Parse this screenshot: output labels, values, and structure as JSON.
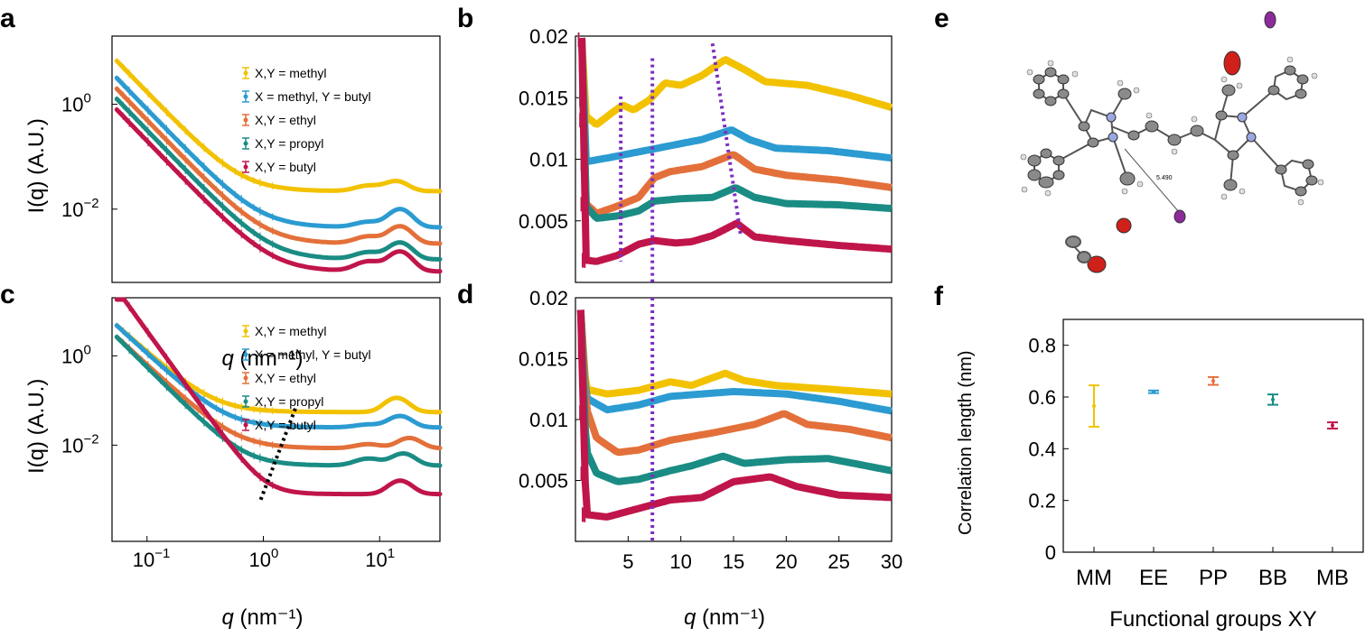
{
  "panel_labels": [
    "a",
    "b",
    "c",
    "d",
    "e",
    "f"
  ],
  "colors": {
    "methyl": "#f2c200",
    "methyl_butyl": "#2b9bd1",
    "ethyl": "#e3703a",
    "propyl": "#1a8c84",
    "butyl": "#c0154a",
    "guide_purple": "#7b2fbe",
    "guide_black": "#000000"
  },
  "legend": {
    "entries": [
      {
        "key": "methyl",
        "label": "X,Y = methyl"
      },
      {
        "key": "methyl_butyl",
        "label": "X = methyl, Y = butyl"
      },
      {
        "key": "ethyl",
        "label": "X,Y = ethyl"
      },
      {
        "key": "propyl",
        "label": "X,Y = propyl"
      },
      {
        "key": "butyl",
        "label": "X,Y = butyl"
      }
    ]
  },
  "molecule": {
    "distance_label": "5.490"
  },
  "chart_data": [
    {
      "id": "a",
      "type": "scatter",
      "xscale": "log",
      "yscale": "log",
      "xlim": [
        0.05,
        33
      ],
      "ylim": [
        0.0004,
        20
      ],
      "xlabel_var": "q",
      "xlabel_unit": " (nm⁻¹)",
      "ylabel": "I(q) (A.U.)",
      "yticks": [
        {
          "v": 1,
          "base": "10",
          "exp": "0"
        },
        {
          "v": 0.01,
          "base": "10",
          "exp": "−2"
        }
      ],
      "series": [
        {
          "key": "methyl",
          "name": "X,Y = methyl",
          "plateau": 0.022,
          "A": 0.0085,
          "p": 2.3,
          "peaks": [
            [
              8,
              0.35,
              0.006
            ],
            [
              14,
              0.3,
              0.012
            ]
          ]
        },
        {
          "key": "methyl_butyl",
          "name": "X = methyl, Y = butyl",
          "plateau": 0.0045,
          "A": 0.004,
          "p": 2.3,
          "peaks": [
            [
              8,
              0.35,
              0.0012
            ],
            [
              15,
              0.3,
              0.0055
            ]
          ]
        },
        {
          "key": "ethyl",
          "name": "X,Y = ethyl",
          "plateau": 0.0022,
          "A": 0.0025,
          "p": 2.3,
          "peaks": [
            [
              8,
              0.35,
              0.0008
            ],
            [
              15,
              0.3,
              0.0025
            ]
          ]
        },
        {
          "key": "propyl",
          "name": "X,Y = propyl",
          "plateau": 0.0011,
          "A": 0.0016,
          "p": 2.3,
          "peaks": [
            [
              8,
              0.35,
              0.0004
            ],
            [
              15,
              0.3,
              0.0012
            ]
          ]
        },
        {
          "key": "butyl",
          "name": "X,Y = butyl",
          "plateau": 0.00065,
          "A": 0.001,
          "p": 2.3,
          "peaks": [
            [
              8,
              0.35,
              0.00035
            ],
            [
              15,
              0.3,
              0.0009
            ]
          ]
        }
      ]
    },
    {
      "id": "b",
      "type": "scatter",
      "xscale": "linear",
      "yscale": "linear",
      "xlim": [
        0,
        30
      ],
      "ylim": [
        0,
        0.02
      ],
      "yticks": [
        0.005,
        0.01,
        0.015,
        0.02
      ],
      "guides": [
        {
          "x1": 4.3,
          "y1": 0.0151,
          "x2": 4.3,
          "y2": 0.0017
        },
        {
          "x1": 7.3,
          "y1": 0.0182,
          "x2": 7.3,
          "y2": 0.0
        },
        {
          "x1": 13.0,
          "y1": 0.0194,
          "x2": 15.7,
          "y2": 0.0037
        }
      ],
      "series": [
        {
          "key": "methyl",
          "name": "X,Y = methyl",
          "start": 0.014,
          "end": 0.0142,
          "pts": [
            [
              0.6,
              0.02
            ],
            [
              1,
              0.0135
            ],
            [
              2,
              0.0128
            ],
            [
              3.5,
              0.0138
            ],
            [
              4.5,
              0.0144
            ],
            [
              5.5,
              0.014
            ],
            [
              7,
              0.0148
            ],
            [
              8.5,
              0.0162
            ],
            [
              10,
              0.016
            ],
            [
              12,
              0.0168
            ],
            [
              14.2,
              0.0181
            ],
            [
              16,
              0.0173
            ],
            [
              18,
              0.0163
            ],
            [
              22,
              0.016
            ],
            [
              26,
              0.0152
            ],
            [
              30,
              0.0142
            ]
          ]
        },
        {
          "key": "methyl_butyl",
          "name": "X = methyl, Y = butyl",
          "pts": [
            [
              0.6,
              0.02
            ],
            [
              1,
              0.0098
            ],
            [
              3,
              0.0101
            ],
            [
              6,
              0.0106
            ],
            [
              9,
              0.0111
            ],
            [
              12,
              0.0116
            ],
            [
              14.8,
              0.0124
            ],
            [
              16.5,
              0.0116
            ],
            [
              19,
              0.0109
            ],
            [
              24,
              0.0107
            ],
            [
              30,
              0.0101
            ]
          ]
        },
        {
          "key": "ethyl",
          "name": "X,Y = ethyl",
          "pts": [
            [
              0.6,
              0.02
            ],
            [
              1,
              0.0064
            ],
            [
              2,
              0.0056
            ],
            [
              4,
              0.0062
            ],
            [
              6,
              0.0069
            ],
            [
              7.5,
              0.0085
            ],
            [
              9,
              0.009
            ],
            [
              12,
              0.0094
            ],
            [
              15,
              0.0104
            ],
            [
              17,
              0.0092
            ],
            [
              20,
              0.0087
            ],
            [
              25,
              0.0083
            ],
            [
              30,
              0.0077
            ]
          ]
        },
        {
          "key": "propyl",
          "name": "X,Y = propyl",
          "pts": [
            [
              0.6,
              0.02
            ],
            [
              1,
              0.0062
            ],
            [
              2,
              0.0052
            ],
            [
              4,
              0.0054
            ],
            [
              6,
              0.0058
            ],
            [
              7.5,
              0.0066
            ],
            [
              10,
              0.0068
            ],
            [
              13,
              0.0069
            ],
            [
              15.2,
              0.0077
            ],
            [
              17,
              0.0069
            ],
            [
              20,
              0.0064
            ],
            [
              25,
              0.0063
            ],
            [
              30,
              0.006
            ]
          ]
        },
        {
          "key": "butyl",
          "name": "X,Y = butyl",
          "pts": [
            [
              0.6,
              0.02
            ],
            [
              1,
              0.0018
            ],
            [
              2,
              0.0017
            ],
            [
              4,
              0.0022
            ],
            [
              6,
              0.0031
            ],
            [
              7.5,
              0.0034
            ],
            [
              9.5,
              0.0032
            ],
            [
              11,
              0.0033
            ],
            [
              13,
              0.0038
            ],
            [
              15.3,
              0.0048
            ],
            [
              17,
              0.0037
            ],
            [
              20,
              0.0034
            ],
            [
              25,
              0.003
            ],
            [
              30,
              0.0027
            ]
          ]
        }
      ]
    },
    {
      "id": "c",
      "type": "scatter",
      "xscale": "log",
      "yscale": "log",
      "xlim": [
        0.05,
        33
      ],
      "ylim": [
        7e-05,
        20
      ],
      "xlabel_var": "q",
      "xlabel_unit": " (nm⁻¹)",
      "ylabel": "I(q) (A.U.)",
      "xticks": [
        {
          "v": 0.1,
          "base": "10",
          "exp": "−1"
        },
        {
          "v": 1,
          "base": "10",
          "exp": "0"
        },
        {
          "v": 10,
          "base": "10",
          "exp": "1"
        }
      ],
      "yticks": [
        {
          "v": 1,
          "base": "10",
          "exp": "0"
        },
        {
          "v": 0.01,
          "base": "10",
          "exp": "−2"
        }
      ],
      "guide": {
        "x1": 0.95,
        "y1": 0.0006,
        "x2": 1.9,
        "y2": 0.07
      },
      "series": [
        {
          "key": "methyl",
          "name": "X,Y = methyl",
          "plateau": 0.055,
          "A": 0.006,
          "p": 2.3,
          "peaks": [
            [
              14,
              0.3,
              0.06
            ]
          ]
        },
        {
          "key": "methyl_butyl",
          "name": "X = methyl, Y = butyl",
          "plateau": 0.025,
          "A": 0.0045,
          "p": 2.4,
          "peaks": [
            [
              8,
              0.35,
              0.004
            ],
            [
              15,
              0.3,
              0.02
            ]
          ]
        },
        {
          "key": "ethyl",
          "name": "X,Y = ethyl",
          "plateau": 0.0085,
          "A": 0.0025,
          "p": 2.4,
          "peaks": [
            [
              8,
              0.35,
              0.002
            ],
            [
              18,
              0.3,
              0.006
            ]
          ]
        },
        {
          "key": "propyl",
          "name": "X,Y = propyl",
          "plateau": 0.0035,
          "A": 0.0014,
          "p": 2.6,
          "peaks": [
            [
              8,
              0.35,
              0.0015
            ],
            [
              16,
              0.3,
              0.003
            ]
          ]
        },
        {
          "key": "butyl",
          "name": "X,Y = butyl",
          "plateau": 0.0008,
          "A": 0.0009,
          "p": 3.6,
          "peaks": [
            [
              15,
              0.3,
              0.0008
            ]
          ]
        }
      ]
    },
    {
      "id": "d",
      "type": "scatter",
      "xscale": "linear",
      "yscale": "linear",
      "xlim": [
        0,
        30
      ],
      "ylim": [
        0,
        0.02
      ],
      "xlabel_var": "q",
      "xlabel_unit": " (nm⁻¹)",
      "xticks": [
        5,
        10,
        15,
        20,
        25,
        30
      ],
      "yticks": [
        0.005,
        0.01,
        0.015,
        0.02
      ],
      "guides": [
        {
          "x1": 7.3,
          "y1": 0.02,
          "x2": 7.3,
          "y2": 0.0
        }
      ],
      "series": [
        {
          "key": "methyl",
          "name": "X,Y = methyl",
          "pts": [
            [
              0.5,
              0.019
            ],
            [
              1,
              0.0125
            ],
            [
              3,
              0.0121
            ],
            [
              6,
              0.0124
            ],
            [
              9,
              0.0131
            ],
            [
              11,
              0.0128
            ],
            [
              14.2,
              0.0138
            ],
            [
              16,
              0.0132
            ],
            [
              19,
              0.0128
            ],
            [
              24,
              0.0125
            ],
            [
              30,
              0.0121
            ]
          ]
        },
        {
          "key": "methyl_butyl",
          "name": "X = methyl, Y = butyl",
          "pts": [
            [
              0.5,
              0.019
            ],
            [
              1,
              0.0118
            ],
            [
              3,
              0.0108
            ],
            [
              6,
              0.0112
            ],
            [
              9,
              0.0119
            ],
            [
              12,
              0.0121
            ],
            [
              15,
              0.0123
            ],
            [
              20,
              0.0121
            ],
            [
              25,
              0.0115
            ],
            [
              30,
              0.0107
            ]
          ]
        },
        {
          "key": "ethyl",
          "name": "X,Y = ethyl",
          "pts": [
            [
              0.5,
              0.019
            ],
            [
              1,
              0.011
            ],
            [
              2,
              0.0085
            ],
            [
              4,
              0.0073
            ],
            [
              6,
              0.0075
            ],
            [
              9,
              0.0083
            ],
            [
              13,
              0.0089
            ],
            [
              17,
              0.0096
            ],
            [
              19.8,
              0.0105
            ],
            [
              22,
              0.0096
            ],
            [
              26,
              0.0092
            ],
            [
              30,
              0.0085
            ]
          ]
        },
        {
          "key": "propyl",
          "name": "X,Y = propyl",
          "pts": [
            [
              0.5,
              0.019
            ],
            [
              1,
              0.0075
            ],
            [
              2,
              0.0056
            ],
            [
              4,
              0.0049
            ],
            [
              6,
              0.0051
            ],
            [
              9,
              0.0058
            ],
            [
              11,
              0.0062
            ],
            [
              14,
              0.007
            ],
            [
              16,
              0.0064
            ],
            [
              20,
              0.0067
            ],
            [
              24,
              0.0068
            ],
            [
              27,
              0.0063
            ],
            [
              30,
              0.0058
            ]
          ]
        },
        {
          "key": "butyl",
          "name": "X,Y = butyl",
          "pts": [
            [
              0.5,
              0.019
            ],
            [
              1,
              0.0022
            ],
            [
              3,
              0.002
            ],
            [
              6,
              0.0027
            ],
            [
              9,
              0.0034
            ],
            [
              12,
              0.0036
            ],
            [
              15,
              0.0049
            ],
            [
              18.5,
              0.0053
            ],
            [
              21,
              0.0045
            ],
            [
              25,
              0.0038
            ],
            [
              30,
              0.0036
            ]
          ]
        }
      ]
    },
    {
      "id": "f",
      "type": "scatter",
      "errorbars": true,
      "ylim": [
        0,
        0.9
      ],
      "xlabel": "Functional groups XY",
      "ylabel": "Correlation length (nm)",
      "yticks": [
        0,
        0.2,
        0.4,
        0.6,
        0.8
      ],
      "categories": [
        "MM",
        "EE",
        "PP",
        "BB",
        "MB"
      ],
      "series": [
        {
          "name": "Correlation length",
          "values": [
            0.565,
            0.62,
            0.662,
            0.59,
            0.49
          ],
          "err": [
            0.08,
            0.005,
            0.015,
            0.02,
            0.012
          ],
          "color_keys": [
            "methyl",
            "methyl_butyl",
            "ethyl",
            "propyl",
            "butyl"
          ]
        }
      ]
    }
  ]
}
